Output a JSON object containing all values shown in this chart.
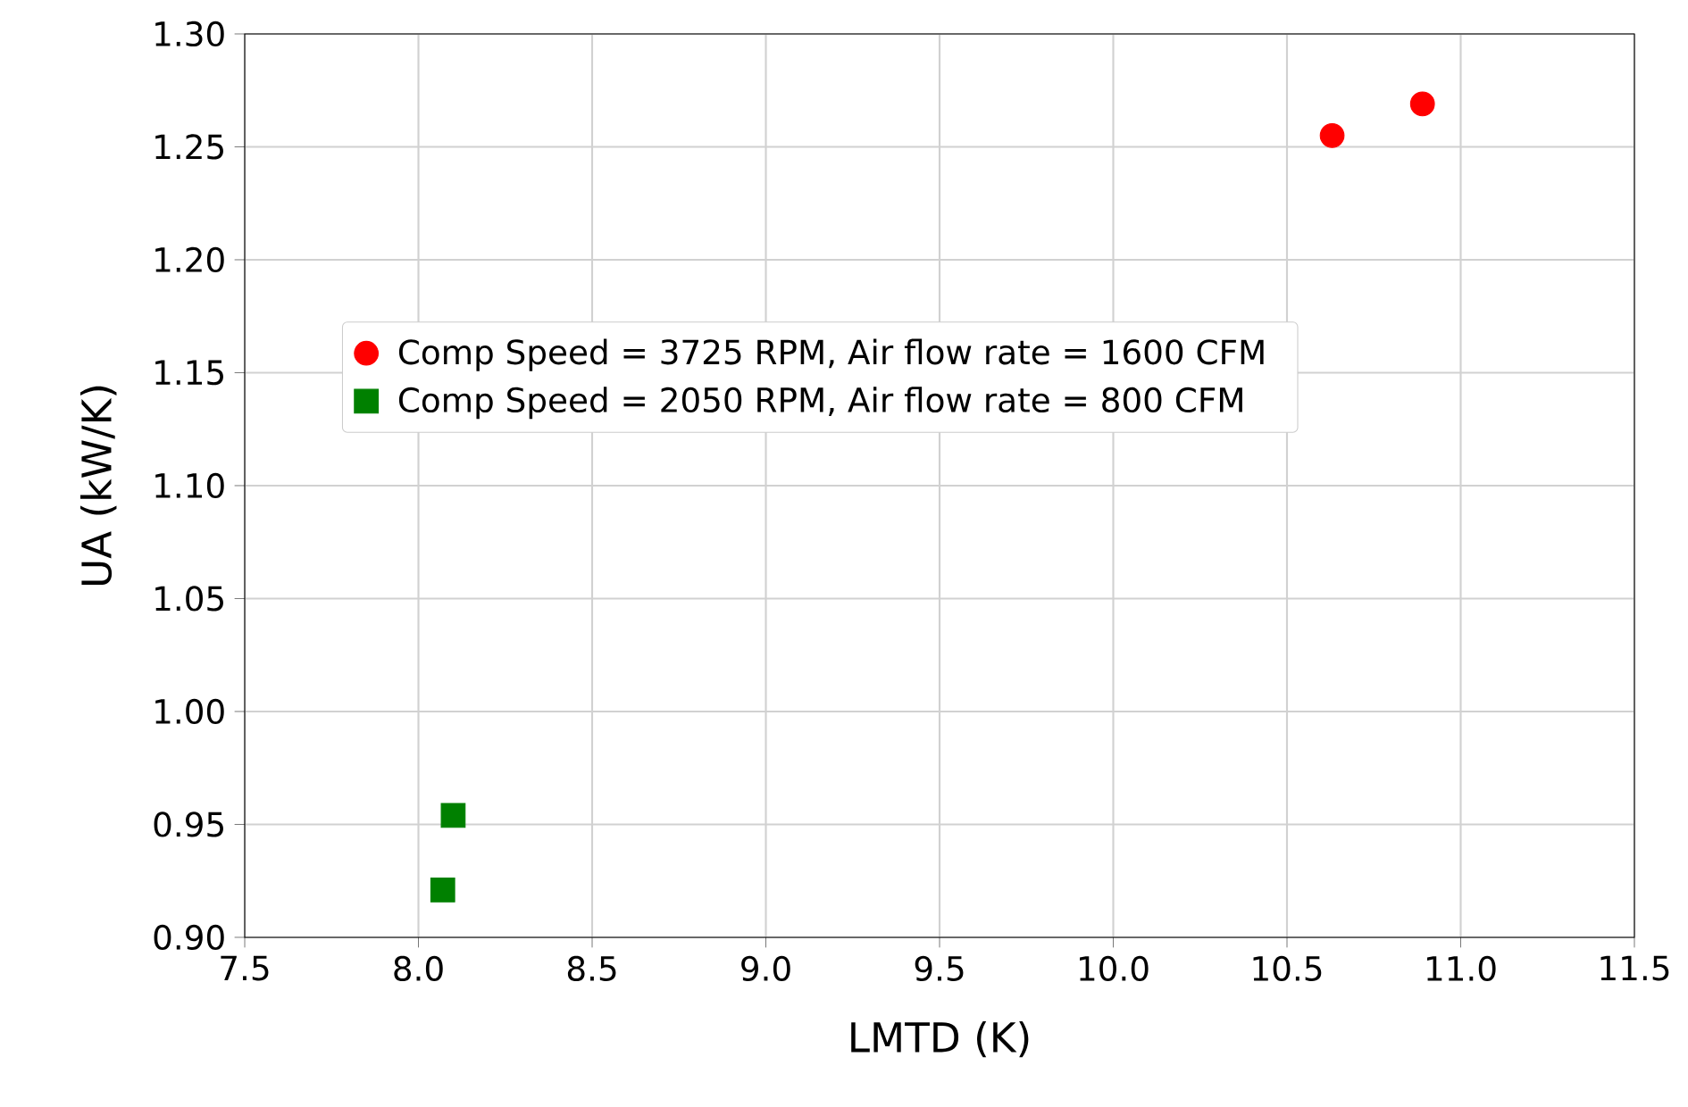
{
  "chart_data": {
    "type": "scatter",
    "xlabel": "LMTD (K)",
    "ylabel": "UA (kW/K)",
    "series": [
      {
        "name": "Comp Speed = 3725 RPM, Air flow rate = 1600 CFM",
        "color": "#ff0000",
        "marker": "circle",
        "x": [
          10.63,
          10.89
        ],
        "values": [
          1.255,
          1.269
        ]
      },
      {
        "name": "Comp Speed = 2050 RPM, Air flow rate = 800 CFM",
        "color": "#008000",
        "marker": "square",
        "x": [
          8.1,
          8.07
        ],
        "values": [
          0.954,
          0.921
        ]
      }
    ],
    "xlim": [
      7.5,
      11.5
    ],
    "ylim": [
      0.9,
      1.3
    ],
    "xticks": [
      7.5,
      {
        "value": 8,
        "label": "8.0"
      },
      8.5,
      {
        "value": 9,
        "label": "9.0"
      },
      9.5,
      {
        "value": 10,
        "label": "10.0"
      },
      10.5,
      {
        "value": 11,
        "label": "11.0"
      },
      11.5
    ],
    "yticks": [
      {
        "value": 0.9,
        "label": "0.90"
      },
      0.95,
      {
        "value": 1,
        "label": "1.00"
      },
      1.05,
      {
        "value": 1.1,
        "label": "1.10"
      },
      1.15,
      {
        "value": 1.2,
        "label": "1.20"
      },
      1.25,
      {
        "value": 1.3,
        "label": "1.30"
      }
    ],
    "grid": true,
    "legend": "left"
  }
}
